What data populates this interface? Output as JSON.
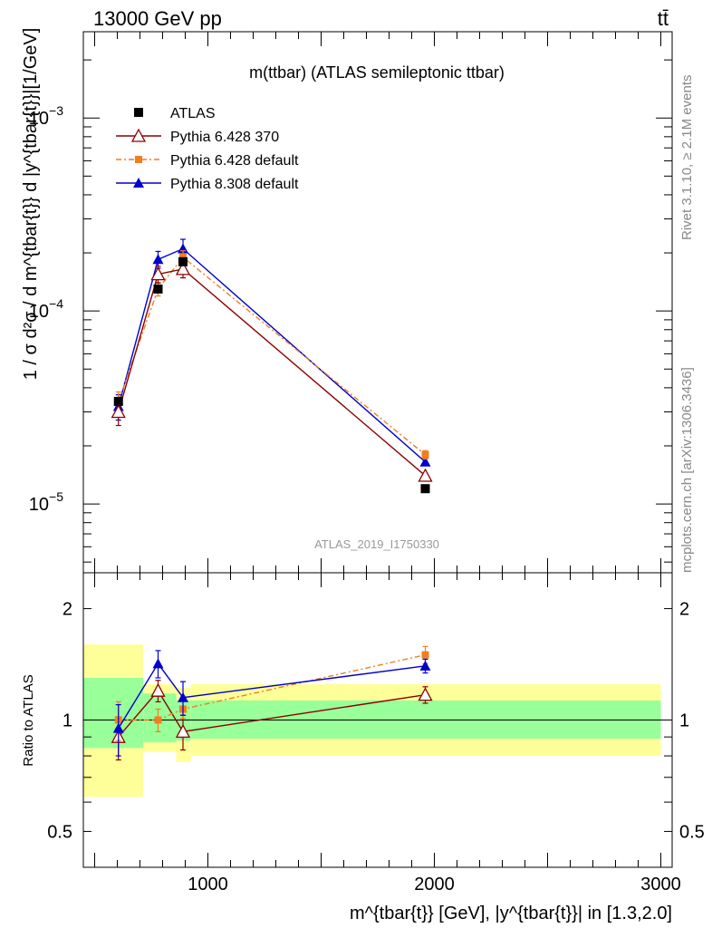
{
  "header": {
    "energy": "13000 GeV pp",
    "process": "tt̄"
  },
  "side_labels": {
    "rivet": "Rivet 3.1.10, ≥ 2.1M events",
    "mcplots": "mcplots.cern.ch [arXiv:1306.3436]"
  },
  "chart_data": [
    {
      "type": "line",
      "title": "m(ttbar) (ATLAS semileptonic ttbar)",
      "analysis": "ATLAS_2019_I1750330",
      "ylabel": "1 / σ d²σ / d m^{tbar{t}} d |y^{tbar{t}}|[1/GeV]",
      "yscale": "log",
      "xlim": [
        450,
        3050
      ],
      "ylim": [
        4.4e-06,
        0.0028
      ],
      "x_ticks": [
        1000,
        2000,
        3000
      ],
      "y_ticks": [
        {
          "value": 1e-05,
          "base": "10",
          "exp": "−5"
        },
        {
          "value": 0.0001,
          "base": "10",
          "exp": "−4"
        },
        {
          "value": 0.001,
          "base": "10",
          "exp": "−3"
        }
      ],
      "legend_position": "top-left",
      "x": [
        605,
        780,
        890,
        1960
      ],
      "bin_edges": [
        450,
        715,
        860,
        925,
        3000
      ],
      "series": [
        {
          "name": "ATLAS",
          "color": "#000000",
          "marker": "square",
          "values": [
            3.4e-05,
            0.00013,
            0.00018,
            1.2e-05
          ]
        },
        {
          "name": "Pythia 6.428 370",
          "color": "#8b0000",
          "marker": "triangle-open",
          "values": [
            3e-05,
            0.000155,
            0.000165,
            1.4e-05
          ],
          "errors": [
            0.15,
            0.1,
            0.1,
            0.03
          ]
        },
        {
          "name": "Pythia 6.428 default",
          "color": "#f07f20",
          "marker": "square-small",
          "dash": true,
          "values": [
            3.4e-05,
            0.00013,
            0.00019,
            1.8e-05
          ],
          "errors": [
            0.12,
            0.08,
            0.08,
            0.05
          ]
        },
        {
          "name": "Pythia 8.308 default",
          "color": "#0000cc",
          "marker": "triangle",
          "values": [
            3.2e-05,
            0.000185,
            0.00021,
            1.65e-05
          ],
          "errors": [
            0.15,
            0.1,
            0.12,
            0.04
          ]
        }
      ]
    },
    {
      "type": "line",
      "ylabel": "Ratio to ATLAS",
      "xlabel": "m^{tbar{t}} [GeV], |y^{tbar{t}}| in [1.3,2.0]",
      "yscale": "log",
      "xlim": [
        450,
        3050
      ],
      "ylim": [
        0.4,
        2.5
      ],
      "x_ticks": [
        1000,
        2000,
        3000
      ],
      "y_ticks": [
        0.5,
        1,
        2
      ],
      "bands": {
        "yellow": [
          [
            0.62,
            1.6
          ],
          [
            0.82,
            1.25
          ],
          [
            0.77,
            1.22
          ],
          [
            0.8,
            1.25
          ]
        ],
        "green": [
          [
            0.84,
            1.3
          ],
          [
            0.87,
            1.18
          ],
          [
            0.88,
            1.13
          ],
          [
            0.89,
            1.13
          ]
        ]
      },
      "x": [
        605,
        780,
        890,
        1960
      ],
      "series": [
        {
          "name": "Pythia 6.428 370",
          "color": "#8b0000",
          "marker": "triangle-open",
          "values": [
            0.9,
            1.2,
            0.93,
            1.17
          ],
          "errors": [
            0.12,
            0.08,
            0.1,
            0.06
          ]
        },
        {
          "name": "Pythia 6.428 default",
          "color": "#f07f20",
          "marker": "square-small",
          "dash": true,
          "values": [
            1.0,
            1.0,
            1.07,
            1.5
          ],
          "errors": [
            0.12,
            0.07,
            0.06,
            0.08
          ]
        },
        {
          "name": "Pythia 8.308 default",
          "color": "#0000cc",
          "marker": "triangle",
          "values": [
            0.95,
            1.42,
            1.15,
            1.4
          ],
          "errors": [
            0.15,
            0.12,
            0.12,
            0.06
          ]
        }
      ]
    }
  ]
}
